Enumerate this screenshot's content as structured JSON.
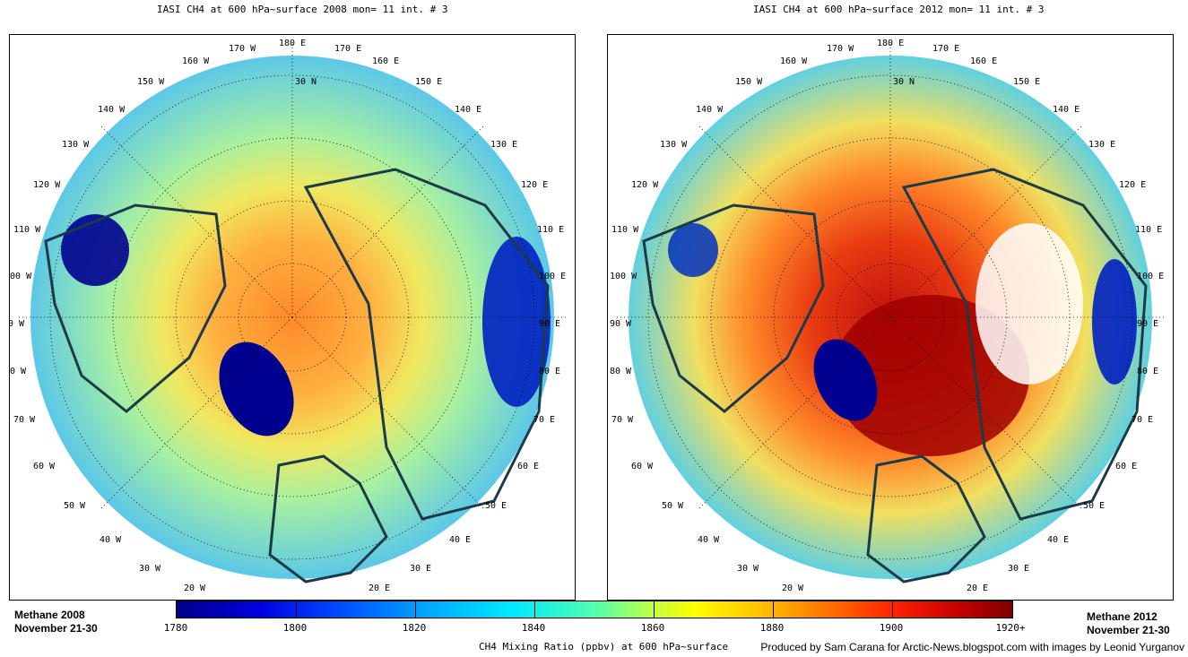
{
  "maps": [
    {
      "title": "IASI CH4 at 600 hPa~surface 2008 mon=  11 int. # 3",
      "year": "2008",
      "label_line1": "Methane  2008",
      "label_line2": "November 21-30",
      "colors": {
        "ocean_base": "#7fd4dc",
        "arctic": "#ff9a3a",
        "greenland": "#000090",
        "outline": "#1c3b48"
      }
    },
    {
      "title": "IASI CH4 at 600 hPa~surface 2012 mon=  11 int. # 3",
      "year": "2012",
      "label_line1": "Methane  2012",
      "label_line2": "November 21-30",
      "colors": {
        "ocean_base": "#ffb040",
        "arctic": "#b01010",
        "greenland": "#000090",
        "outline": "#1c3b48"
      }
    }
  ],
  "longitude_labels": [
    "180 E",
    "170 W",
    "160 W",
    "150 W",
    "140 W",
    "130 W",
    "120 W",
    "110 W",
    "100 W",
    "90 W",
    "80 W",
    "70 W",
    "60 W",
    "50 W",
    "40 W",
    "30 W",
    "20 W",
    "170 E",
    "160 E",
    "150 E",
    "140 E",
    "130 E",
    "120 E",
    "110 E",
    "100 E",
    "90 E",
    "80 E",
    "70 E",
    "60 E",
    "50 E",
    "40 E",
    "30 E",
    "20 E"
  ],
  "latitude_label": "30 N",
  "colorbar": {
    "ticks": [
      "1780",
      "1800",
      "1820",
      "1840",
      "1860",
      "1880",
      "1900",
      "1920+"
    ],
    "title": "CH4 Mixing Ratio (ppbv) at 600 hPa~surface"
  },
  "credit": "Produced by Sam Carana for Arctic-News.blogspot.com with images by Leonid Yurganov"
}
